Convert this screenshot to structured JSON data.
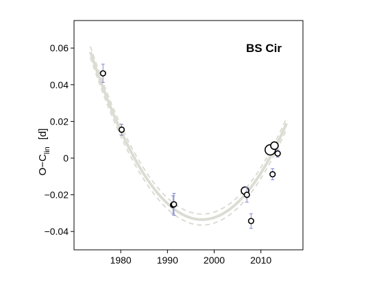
{
  "chart_data": {
    "type": "scatter",
    "title": "BS Cir",
    "xlabel": "",
    "ylabel": {
      "main": "O−C",
      "subscript": "lin",
      "unit": "[d]"
    },
    "xlim": [
      1970,
      2019
    ],
    "ylim": [
      -0.05,
      0.075
    ],
    "xticks": [
      1980,
      1990,
      2000,
      2010
    ],
    "yticks": [
      -0.04,
      -0.02,
      0,
      0.02,
      0.04,
      0.06
    ],
    "ytick_labels": [
      "−0.04",
      "−0.02",
      "0",
      "0.02",
      "0.04",
      "0.06"
    ],
    "grid": false,
    "colors": {
      "fit": "#dcdcd4",
      "errorbar": "#7f86c8",
      "marker": "#000000"
    },
    "series": [
      {
        "points": [
          {
            "x": 1976.2,
            "y": 0.0462,
            "err": 0.005,
            "size": "small"
          },
          {
            "x": 1980.2,
            "y": 0.0155,
            "err": 0.003,
            "size": "small"
          },
          {
            "x": 1991.2,
            "y": -0.0255,
            "err": 0.005,
            "size": "small"
          },
          {
            "x": 1991.4,
            "y": -0.0252,
            "err": 0.006,
            "size": "small"
          },
          {
            "x": 2006.6,
            "y": -0.0178,
            "err": 0.002,
            "size": "medium"
          },
          {
            "x": 2007.0,
            "y": -0.02,
            "err": 0.004,
            "size": "small"
          },
          {
            "x": 2007.9,
            "y": -0.0343,
            "err": 0.004,
            "size": "small"
          },
          {
            "x": 2012.0,
            "y": 0.0045,
            "err": 0.0025,
            "size": "large"
          },
          {
            "x": 2012.5,
            "y": -0.0088,
            "err": 0.003,
            "size": "small"
          },
          {
            "x": 2012.9,
            "y": 0.0068,
            "err": 0.002,
            "size": "medium"
          },
          {
            "x": 2013.6,
            "y": 0.0025,
            "err": 0.002,
            "size": "small"
          }
        ]
      }
    ],
    "fit": {
      "kind": "parabola",
      "x_range": [
        1973.5,
        2015.5
      ],
      "vertex_x": 1997.4,
      "vertex_y": -0.0335,
      "curvature": 0.00016,
      "band_offset": 0.003
    }
  }
}
